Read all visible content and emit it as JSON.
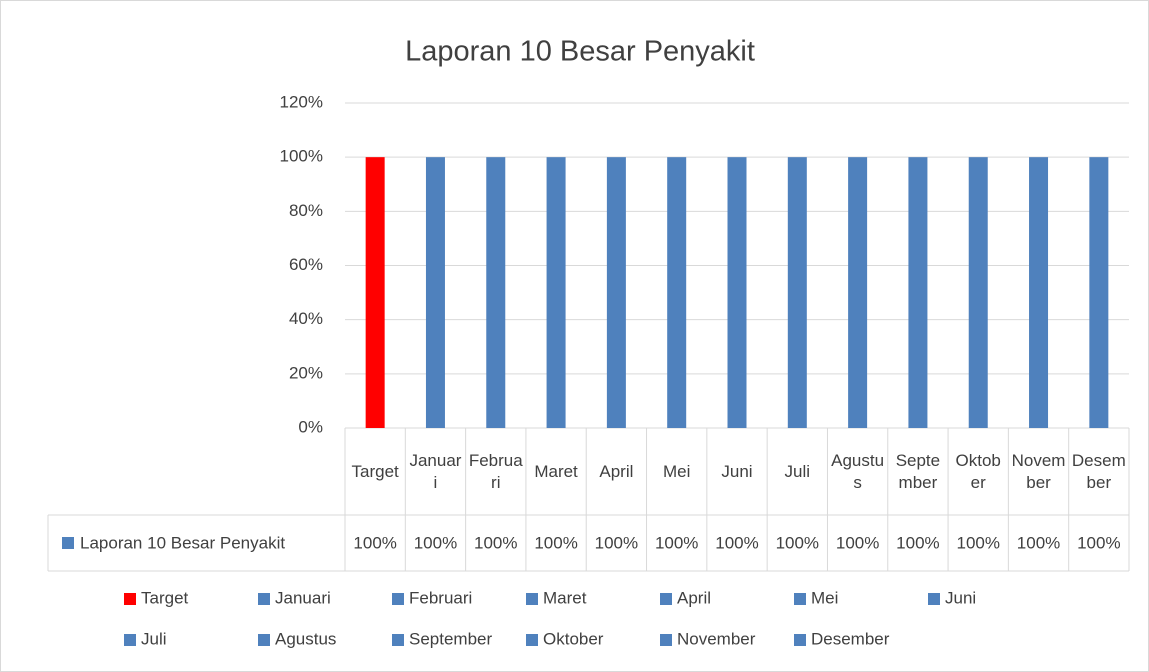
{
  "chart_data": {
    "type": "bar",
    "title": "Laporan 10 Besar Penyakit",
    "series_name": "Laporan 10 Besar Penyakit",
    "categories": [
      "Target",
      "Januari",
      "Februari",
      "Maret",
      "April",
      "Mei",
      "Juni",
      "Juli",
      "Agustus",
      "September",
      "Oktober",
      "November",
      "Desember"
    ],
    "values": [
      100,
      100,
      100,
      100,
      100,
      100,
      100,
      100,
      100,
      100,
      100,
      100,
      100
    ],
    "value_labels": [
      "100%",
      "100%",
      "100%",
      "100%",
      "100%",
      "100%",
      "100%",
      "100%",
      "100%",
      "100%",
      "100%",
      "100%",
      "100%"
    ],
    "colors": [
      "#ff0000",
      "#4f81bd",
      "#4f81bd",
      "#4f81bd",
      "#4f81bd",
      "#4f81bd",
      "#4f81bd",
      "#4f81bd",
      "#4f81bd",
      "#4f81bd",
      "#4f81bd",
      "#4f81bd",
      "#4f81bd"
    ],
    "ylim": [
      0,
      120
    ],
    "yticks": [
      {
        "value": 0,
        "label": "0%"
      },
      {
        "value": 20,
        "label": "20%"
      },
      {
        "value": 40,
        "label": "40%"
      },
      {
        "value": 60,
        "label": "60%"
      },
      {
        "value": 80,
        "label": "80%"
      },
      {
        "value": 100,
        "label": "100%"
      },
      {
        "value": 120,
        "label": "120%"
      }
    ],
    "grid": true
  }
}
